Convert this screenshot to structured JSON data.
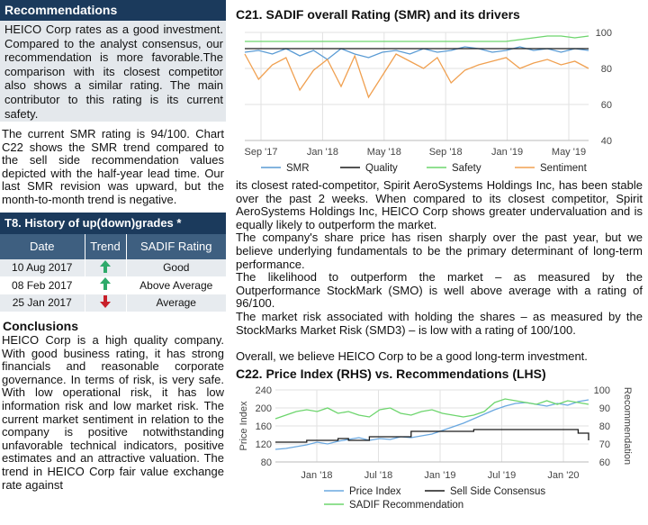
{
  "recommendations": {
    "header": "Recommendations",
    "box_text": "HEICO Corp rates as a good investment. Compared to the analyst consensus, our recommendation is more favorable.The comparison with its closest competitor also shows a similar rating. The main contributor to this rating is its current safety.",
    "smr_text": "The current SMR rating is 94/100. Chart C22 shows the SMR trend compared to the sell side recommendation values depicted with the half-year lead time. Our last SMR revision was upward, but the month-to-month trend is negative."
  },
  "history_table": {
    "title": "T8. History of up(down)grades *",
    "columns": [
      "Date",
      "Trend",
      "SADIF Rating"
    ],
    "rows": [
      {
        "date": "10 Aug 2017",
        "trend": "up",
        "rating": "Good"
      },
      {
        "date": "08 Feb 2017",
        "trend": "up",
        "rating": "Above Average"
      },
      {
        "date": "25 Jan 2017",
        "trend": "down",
        "rating": "Average"
      }
    ],
    "colors": {
      "up": "#2eaa6a",
      "down": "#c8202a"
    }
  },
  "conclusions": {
    "title": "Conclusions",
    "text": "HEICO Corp is a high quality company. With good business rating, it has strong financials and reasonable corporate governance. In terms of risk, is very safe. With low operational risk, it has low information risk and low market risk. The current market sentiment in relation to the company is positive notwithstanding unfavorable technical indicators, positive estimates and an attractive valuation. The trend in HEICO Corp fair value exchange rate against"
  },
  "right_text": [
    "its closest rated-competitor, Spirit AeroSystems Holdings Inc, has been stable over the past 2 weeks. When compared to its closest competitor, Spirit AeroSystems Holdings Inc, HEICO Corp shows greater undervaluation and is equally likely to outperform the market.",
    "The company's share price has risen sharply over the past year, but we believe underlying fundamentals to be the primary determinant of long-term performance.",
    "The likelihood to outperform the market – as measured by the Outperformance StockMark (SMO) is well above average with a rating of 96/100.",
    "The market risk associated with holding the shares – as measured by the StockMarks Market Risk (SMD3) – is low with a rating of 100/100.",
    "",
    "Overall, we believe HEICO Corp to be a good long-term investment."
  ],
  "chart_data": [
    {
      "type": "line",
      "title": "C21. SADIF overall Rating (SMR) and its drivers",
      "x_ticks": [
        "Sep '17",
        "Jan '18",
        "May '18",
        "Sep '18",
        "Jan '19",
        "May '19"
      ],
      "x_range": [
        "2017-08",
        "2019-09"
      ],
      "y_ticks": [
        100,
        80,
        60,
        40
      ],
      "ylim": [
        40,
        100
      ],
      "y_axis_side": "right",
      "grid": true,
      "legend_position": "bottom",
      "series": [
        {
          "name": "SMR",
          "color": "#5a9bd4",
          "values": [
            89,
            90,
            88,
            91,
            87,
            90,
            85,
            91,
            88,
            86,
            89,
            90,
            88,
            91,
            89,
            90,
            92,
            91,
            89,
            90,
            92,
            90,
            91,
            89,
            91,
            90
          ]
        },
        {
          "name": "Quality",
          "color": "#1a1a1a",
          "values": [
            91,
            91,
            91,
            91,
            91,
            91,
            91,
            91,
            91,
            91,
            91,
            91,
            91,
            91,
            91,
            91,
            91,
            91,
            91,
            91,
            91,
            91,
            91,
            91,
            91,
            91
          ]
        },
        {
          "name": "Safety",
          "color": "#6dd56d",
          "values": [
            95,
            95,
            95,
            95,
            95,
            95,
            95,
            95,
            95,
            95,
            95,
            95,
            95,
            95,
            95,
            95,
            95,
            95,
            95,
            95,
            96,
            97,
            98,
            98,
            97,
            98
          ]
        },
        {
          "name": "Sentiment",
          "color": "#f0a050",
          "values": [
            88,
            74,
            82,
            86,
            68,
            79,
            85,
            70,
            87,
            64,
            76,
            88,
            84,
            80,
            86,
            72,
            79,
            82,
            84,
            86,
            80,
            83,
            85,
            82,
            84,
            80
          ]
        }
      ]
    },
    {
      "type": "line",
      "title": "C22.  Price Index (RHS) vs. Recommendations (LHS)",
      "ylabel": "Price Index",
      "y2label": "Recommendation",
      "x_ticks": [
        "Jan '18",
        "Jul '18",
        "Jan '19",
        "Jul '19",
        "Jan '20"
      ],
      "x_range": [
        "2017-09",
        "2020-03"
      ],
      "y_ticks": [
        240,
        200,
        160,
        120,
        80
      ],
      "ylim": [
        80,
        240
      ],
      "y2_ticks": [
        100,
        90,
        80,
        70,
        60
      ],
      "y2lim": [
        60,
        100
      ],
      "grid": true,
      "legend_position": "bottom",
      "series": [
        {
          "name": "Price Index",
          "axis": "left",
          "color": "#6aa8e0",
          "values": [
            108,
            110,
            114,
            118,
            124,
            120,
            126,
            130,
            134,
            128,
            132,
            130,
            136,
            134,
            138,
            142,
            150,
            158,
            166,
            176,
            186,
            196,
            204,
            210,
            212,
            208,
            204,
            210,
            206,
            214,
            218
          ]
        },
        {
          "name": "Sell Side Consensus",
          "axis": "right",
          "color": "#1a1a1a",
          "values": [
            71,
            71,
            71,
            72,
            72,
            72,
            73,
            72,
            72,
            74,
            74,
            74,
            74,
            77,
            77,
            77,
            77,
            77,
            77,
            78,
            78,
            78,
            78,
            78,
            78,
            78,
            78,
            78,
            78,
            76,
            72
          ]
        },
        {
          "name": "SADIF Recommendation",
          "axis": "right",
          "color": "#6dd56d",
          "values": [
            84,
            86,
            88,
            89,
            88,
            90,
            87,
            88,
            86,
            85,
            89,
            90,
            87,
            86,
            88,
            89,
            87,
            86,
            85,
            86,
            88,
            93,
            95,
            94,
            93,
            92,
            94,
            92,
            94,
            93,
            92
          ]
        }
      ]
    }
  ]
}
